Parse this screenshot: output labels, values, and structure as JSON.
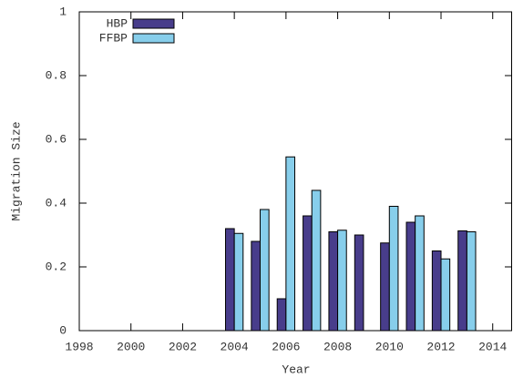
{
  "chart_data": {
    "type": "bar",
    "x_label": "Year",
    "y_label": "Migration Size",
    "categories": [
      1999,
      2000,
      2001,
      2002,
      2003,
      2004,
      2005,
      2006,
      2007,
      2008,
      2009,
      2010,
      2011,
      2012,
      2013
    ],
    "series": [
      {
        "name": "HBP",
        "color": "#483d8b",
        "values": [
          0,
          0,
          0,
          0,
          0,
          0.32,
          0.28,
          0.1,
          0.36,
          0.31,
          0.3,
          0.275,
          0.34,
          0.25,
          0.313
        ]
      },
      {
        "name": "FFBP",
        "color": "#87ceeb",
        "values": [
          0,
          0,
          0,
          0,
          0,
          0.305,
          0.38,
          0.545,
          0.44,
          0.315,
          0,
          0.39,
          0.36,
          0.225,
          0.31
        ]
      }
    ],
    "xlim": [
      1998,
      2014.75
    ],
    "xticks": [
      1998,
      2000,
      2002,
      2004,
      2006,
      2008,
      2010,
      2012,
      2014
    ],
    "ylim": [
      0,
      1
    ],
    "yticks": [
      0,
      0.2,
      0.4,
      0.6,
      0.8,
      1
    ],
    "legend": "top-left"
  }
}
